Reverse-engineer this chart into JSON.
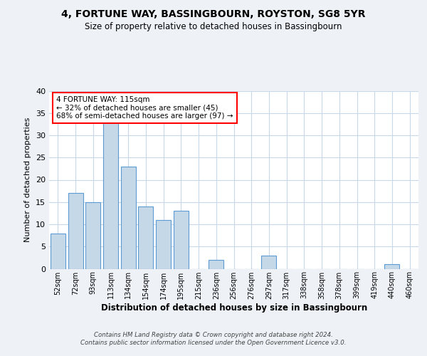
{
  "title1": "4, FORTUNE WAY, BASSINGBOURN, ROYSTON, SG8 5YR",
  "title2": "Size of property relative to detached houses in Bassingbourn",
  "xlabel": "Distribution of detached houses by size in Bassingbourn",
  "ylabel": "Number of detached properties",
  "categories": [
    "52sqm",
    "72sqm",
    "93sqm",
    "113sqm",
    "134sqm",
    "154sqm",
    "174sqm",
    "195sqm",
    "215sqm",
    "236sqm",
    "256sqm",
    "276sqm",
    "297sqm",
    "317sqm",
    "338sqm",
    "358sqm",
    "378sqm",
    "399sqm",
    "419sqm",
    "440sqm",
    "460sqm"
  ],
  "values": [
    8,
    17,
    15,
    33,
    23,
    14,
    11,
    13,
    0,
    2,
    0,
    0,
    3,
    0,
    0,
    0,
    0,
    0,
    0,
    1,
    0
  ],
  "bar_color": "#c5d8e8",
  "bar_edgecolor": "#5b9bd5",
  "annotation_text": "4 FORTUNE WAY: 115sqm\n← 32% of detached houses are smaller (45)\n68% of semi-detached houses are larger (97) →",
  "annotation_box_edgecolor": "red",
  "ylim": [
    0,
    40
  ],
  "yticks": [
    0,
    5,
    10,
    15,
    20,
    25,
    30,
    35,
    40
  ],
  "footnote": "Contains HM Land Registry data © Crown copyright and database right 2024.\nContains public sector information licensed under the Open Government Licence v3.0.",
  "bg_color": "#eef2f7",
  "plot_bg_color": "#ffffff",
  "grid_color": "#c8d8e8"
}
